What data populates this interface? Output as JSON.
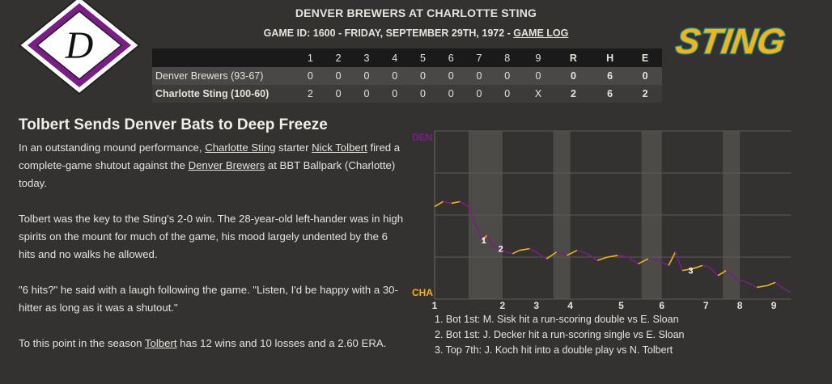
{
  "header": {
    "title": "DENVER BREWERS AT CHARLOTTE STING",
    "subtitle_prefix": "GAME ID: 1600 - FRIDAY, SEPTEMBER 29TH, 1972 - ",
    "game_log_link": "GAME LOG"
  },
  "logos": {
    "home_letter": "D",
    "away_text": "STING",
    "purple": "#7b1d86",
    "gold": "#f2b41c",
    "teal": "#1a8a8c"
  },
  "linescore": {
    "headers": [
      "",
      "1",
      "2",
      "3",
      "4",
      "5",
      "6",
      "7",
      "8",
      "9",
      "R",
      "H",
      "E"
    ],
    "rows": [
      {
        "team": "Denver Brewers (93-67)",
        "innings": [
          "0",
          "0",
          "0",
          "0",
          "0",
          "0",
          "0",
          "0",
          "0"
        ],
        "R": "0",
        "H": "6",
        "E": "0"
      },
      {
        "team": "Charlotte Sting (100-60)",
        "innings": [
          "2",
          "0",
          "0",
          "0",
          "0",
          "0",
          "0",
          "0",
          "X"
        ],
        "R": "2",
        "H": "6",
        "E": "2"
      }
    ]
  },
  "article": {
    "headline": "Tolbert Sends Denver Bats to Deep Freeze",
    "p1": {
      "a": "In an outstanding mound performance, ",
      "link1": "Charlotte Sting",
      "b": " starter ",
      "link2": "Nick Tolbert",
      "c": " fired a complete-game shutout against the ",
      "link3": "Denver Brewers",
      "d": " at BBT Ballpark (Charlotte) today."
    },
    "p2": "Tolbert was the key to the Sting's 2-0 win. The 28-year-old left-hander was in high spirits on the mount for much of the game, his mood largely undented by the 6 hits and no walks he allowed.",
    "p3": "\"6 hits?\" he said with a laugh following the game. \"Listen, I'd be happy with a 30-hitter as long as it was a shutout.\"",
    "p4": {
      "a": "To this point in the season ",
      "link": "Tolbert",
      "b": " has 12 wins and 10 losses and a 2.60 ERA."
    }
  },
  "chart_data": {
    "type": "line",
    "top_label": "DEN",
    "bottom_label": "CHA",
    "x_ticks": [
      "1",
      "2",
      "3",
      "4",
      "5",
      "6",
      "7",
      "8",
      "9"
    ],
    "ylim": [
      0,
      100
    ],
    "y_meaning": "Charlotte win probability (%)",
    "colors": {
      "den": "#7b1d86",
      "cha": "#f2b41c"
    },
    "points": [
      [
        0.0,
        55
      ],
      [
        0.25,
        58
      ],
      [
        0.5,
        57
      ],
      [
        0.75,
        58
      ],
      [
        1.0,
        55
      ],
      [
        1.2,
        45
      ],
      [
        1.4,
        35
      ],
      [
        1.55,
        38
      ],
      [
        1.7,
        32
      ],
      [
        1.9,
        30
      ],
      [
        2.1,
        28
      ],
      [
        2.3,
        27
      ],
      [
        2.5,
        29
      ],
      [
        2.8,
        30
      ],
      [
        3.0,
        28
      ],
      [
        3.3,
        24
      ],
      [
        3.6,
        28
      ],
      [
        3.9,
        26
      ],
      [
        4.2,
        29
      ],
      [
        4.5,
        27
      ],
      [
        4.8,
        23
      ],
      [
        5.1,
        25
      ],
      [
        5.4,
        26
      ],
      [
        5.7,
        25
      ],
      [
        6.0,
        21
      ],
      [
        6.3,
        24
      ],
      [
        6.6,
        23
      ],
      [
        6.9,
        20
      ],
      [
        7.1,
        28
      ],
      [
        7.3,
        17
      ],
      [
        7.6,
        18
      ],
      [
        7.9,
        20
      ],
      [
        8.1,
        19
      ],
      [
        8.35,
        14
      ],
      [
        8.6,
        17
      ],
      [
        8.9,
        12
      ],
      [
        9.2,
        10
      ],
      [
        9.5,
        7
      ],
      [
        9.8,
        8
      ],
      [
        10.05,
        10
      ],
      [
        10.3,
        6
      ],
      [
        10.5,
        4
      ]
    ],
    "annotations": [
      {
        "label": "1",
        "x": 1.45,
        "y": 35
      },
      {
        "label": "2",
        "x": 1.95,
        "y": 30
      },
      {
        "label": "3",
        "x": 7.55,
        "y": 17
      }
    ],
    "inning_ticks_x": [
      0,
      2,
      3,
      4,
      5.5,
      6.7,
      8,
      9,
      10
    ]
  },
  "notes": [
    "1. Bot 1st: M. Sisk hit a run-scoring double vs E. Sloan",
    "2. Bot 1st: J. Decker hit a run-scoring single vs E. Sloan",
    "3. Top 7th: J. Koch hit into a double play vs N. Tolbert"
  ]
}
